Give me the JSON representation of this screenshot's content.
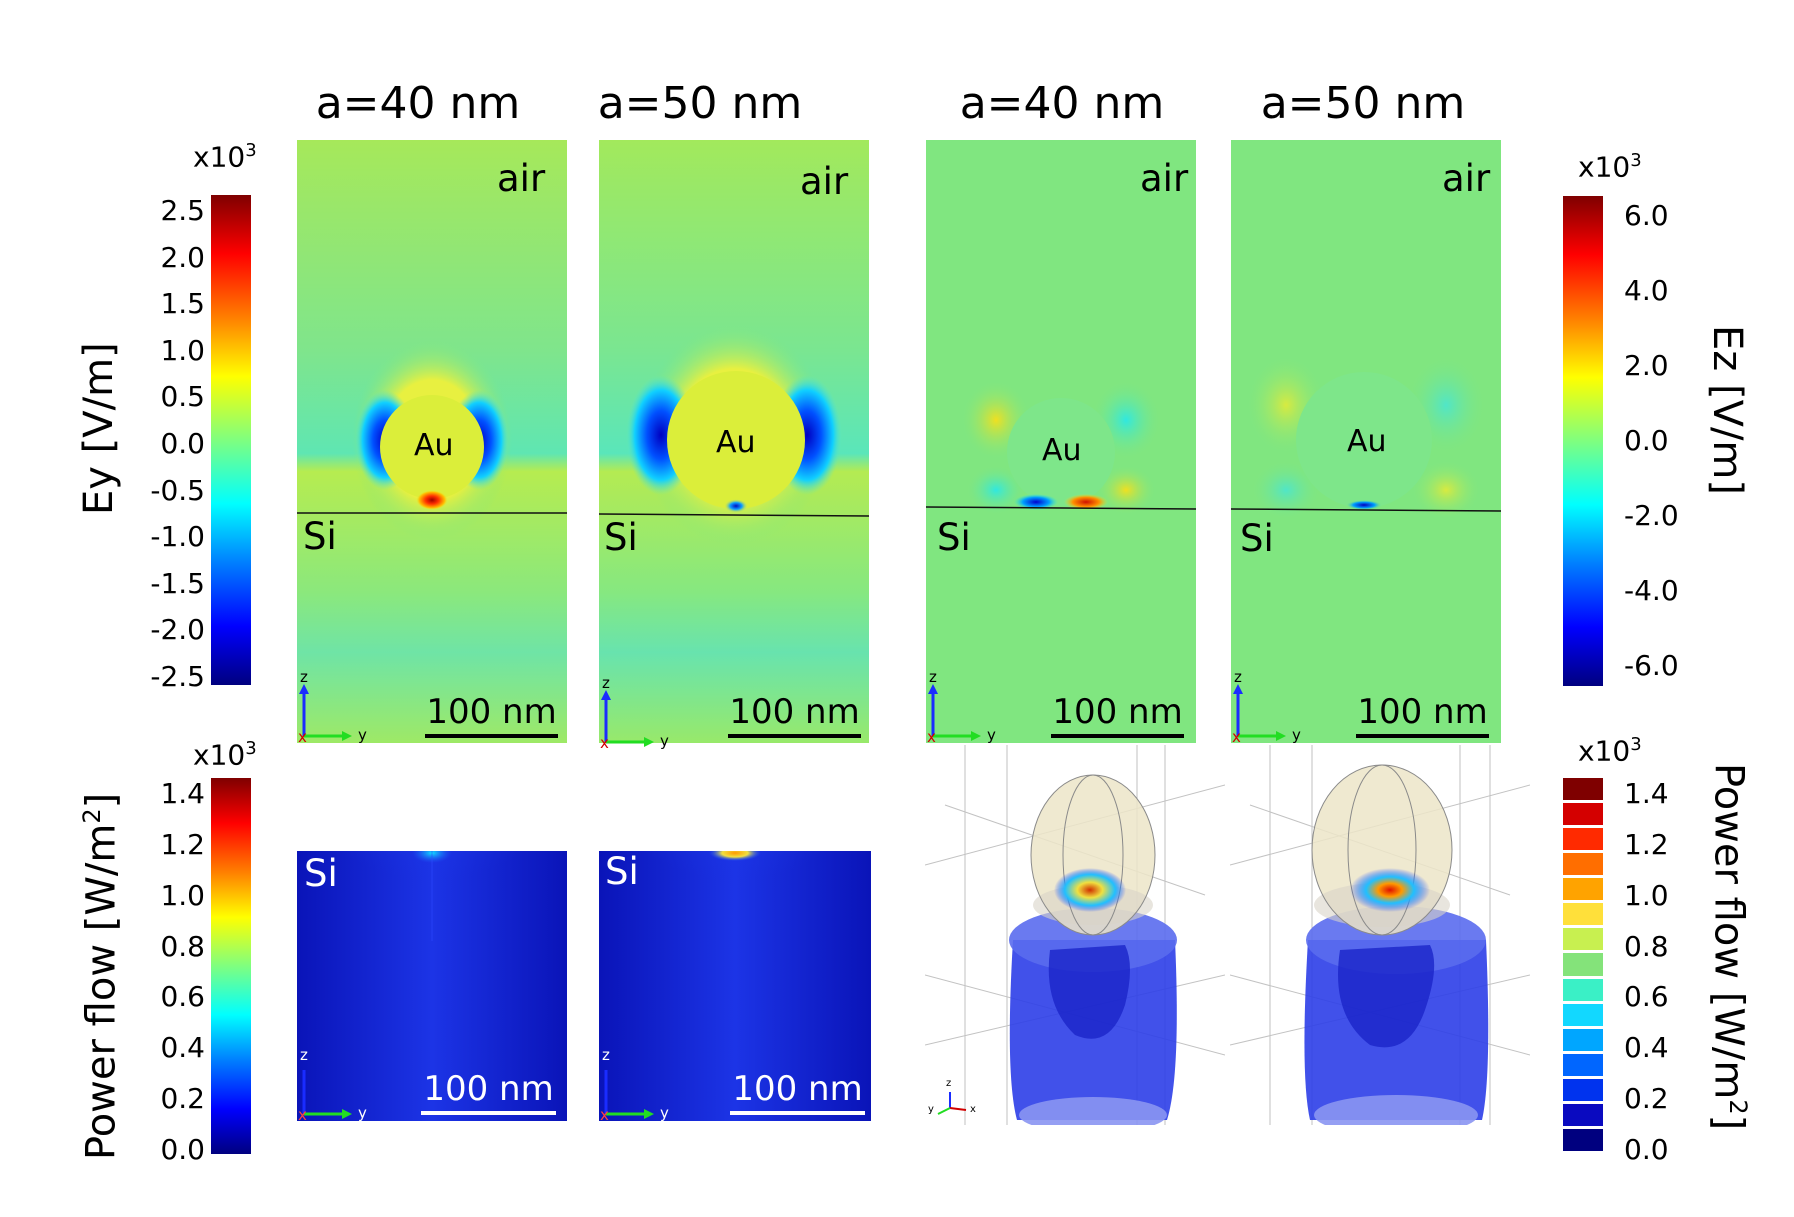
{
  "columns": {
    "c1": "a=40 nm",
    "c2": "a=50 nm",
    "c3": "a=40 nm",
    "c4": "a=50 nm"
  },
  "labels": {
    "air": "air",
    "si": "Si",
    "au": "Au",
    "scale": "100 nm",
    "axis_z": "z",
    "axis_y": "y",
    "axis_x": "x"
  },
  "colorbars": {
    "ey": {
      "label": "Ey [V/m]",
      "exponent_base": "x10",
      "exponent_power": "3",
      "ticks": [
        "2.5",
        "2.0",
        "1.5",
        "1.0",
        "0.5",
        "0.0",
        "-0.5",
        "-1.0",
        "-1.5",
        "-2.0",
        "-2.5"
      ]
    },
    "ez": {
      "label": "Ez [V/m]",
      "exponent_base": "x10",
      "exponent_power": "3",
      "ticks": [
        "6.0",
        "4.0",
        "2.0",
        "0.0",
        "-2.0",
        "-4.0",
        "-6.0"
      ]
    },
    "power_left": {
      "label_base": "Power flow [W/m",
      "label_power": "2",
      "label_end": "]",
      "exponent_base": "x10",
      "exponent_power": "3",
      "ticks": [
        "1.4",
        "1.2",
        "1.0",
        "0.8",
        "0.6",
        "0.4",
        "0.2",
        "0.0"
      ]
    },
    "power_right": {
      "label_base": "Power flow [W/m",
      "label_power": "2",
      "label_end": "]",
      "exponent_base": "x10",
      "exponent_power": "3",
      "ticks": [
        "1.4",
        "1.2",
        "1.0",
        "0.8",
        "0.6",
        "0.4",
        "0.2",
        "0.0"
      ],
      "colors": [
        "#7f0000",
        "#d40000",
        "#ff2a00",
        "#ff6e00",
        "#ffa300",
        "#ffe03a",
        "#c8f050",
        "#84e37a",
        "#3af0c6",
        "#12d8ff",
        "#00a6ff",
        "#0066ff",
        "#0033ee",
        "#0a0ac0",
        "#00007f"
      ]
    }
  },
  "colors": {
    "jet": [
      "#00007f",
      "#0000ff",
      "#007fff",
      "#00ffff",
      "#7fff7f",
      "#ffff00",
      "#ff7f00",
      "#ff0000",
      "#7f0000"
    ],
    "field_background": "#7fe57f",
    "power_background": "#1a24d8"
  }
}
